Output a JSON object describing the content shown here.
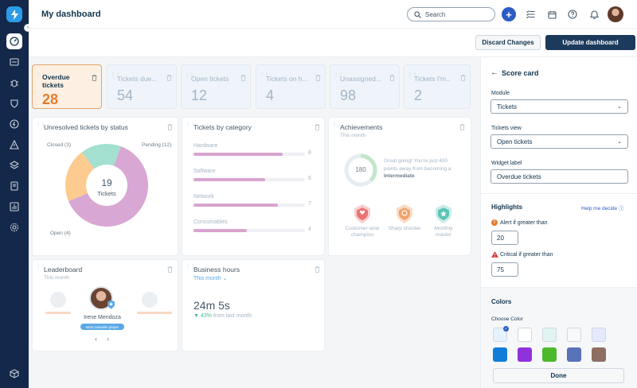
{
  "topbar": {
    "title": "My dashboard",
    "search_placeholder": "Search"
  },
  "actions": {
    "discard": "Discard Changes",
    "update": "Update dashboard"
  },
  "stats": [
    {
      "label": "Overdue tickets",
      "value": "28"
    },
    {
      "label": "Tickets due...",
      "value": "54"
    },
    {
      "label": "Open tickets",
      "value": "12"
    },
    {
      "label": "Tickets on h...",
      "value": "4"
    },
    {
      "label": "Unassigned...",
      "value": "98"
    },
    {
      "label": "Tickets I'm...",
      "value": "2"
    }
  ],
  "unresolved": {
    "title": "Unresolved tickets by status",
    "center_value": "19",
    "center_label": "Tickets",
    "closed": "Closed (3)",
    "pending": "Pending (12)",
    "open": "Open (4)"
  },
  "chart_data": {
    "type": "pie",
    "title": "Unresolved tickets by status",
    "categories": [
      "Pending",
      "Open",
      "Closed"
    ],
    "values": [
      12,
      4,
      3
    ],
    "colors": [
      "#d9a7d4",
      "#fdcb8f",
      "#a3e0d0"
    ]
  },
  "category": {
    "title": "Tickets by category",
    "items": [
      {
        "label": "Hardware",
        "value": "8",
        "pct": 0.8
      },
      {
        "label": "Software",
        "value": "6",
        "pct": 0.64
      },
      {
        "label": "Network",
        "value": "7",
        "pct": 0.76
      },
      {
        "label": "Consumables",
        "value": "4",
        "pct": 0.48
      }
    ]
  },
  "achievements": {
    "title": "Achievements",
    "subtitle": "This month",
    "score": "180",
    "message": "Great going! You're just 400 points away from becoming a",
    "level": "Intermediate",
    "badges": [
      {
        "label": "Customer wow champion",
        "color": "#ec7272"
      },
      {
        "label": "Sharp shooter",
        "color": "#f0a36e"
      },
      {
        "label": "Monthly master",
        "color": "#5bc4b8"
      }
    ]
  },
  "leaderboard": {
    "title": "Leaderboard",
    "subtitle": "This month",
    "name": "Irene Mendoza",
    "tag": "Most valuable player"
  },
  "business_hours": {
    "title": "Business hours",
    "filter": "This month",
    "value": "24m 5s",
    "change": "43%",
    "change_note": "from last month"
  },
  "panel": {
    "title": "Score card",
    "module_label": "Module",
    "module_value": "Tickets",
    "view_label": "Tickets view",
    "view_value": "Open tickets",
    "widget_label": "Widget label",
    "widget_value": "Overdue tickets",
    "highlights": "Highlights",
    "help": "Help me decide",
    "alert_label": "Alert if greater than",
    "alert_value": "20",
    "critical_label": "Critical if greater than",
    "critical_value": "75",
    "colors": "Colors",
    "choose": "Choose Color",
    "done": "Done",
    "swatches": [
      "#e5f2fd",
      "#ffffff",
      "#e0f5f1",
      "#f7f9fa",
      "#e5e9fc",
      "#127dd8",
      "#9032dc",
      "#4cb92d",
      "#5872b8",
      "#8f6e62"
    ]
  }
}
